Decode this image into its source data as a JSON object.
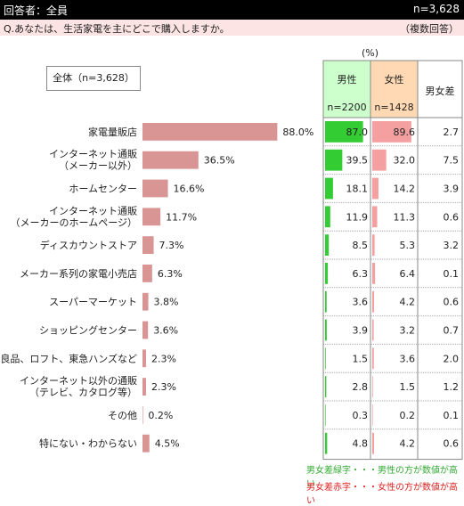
{
  "header": {
    "title": "回答者：全員",
    "n": "n=3,628"
  },
  "question": {
    "text": "Q.あなたは、生活家電を主にどこで購入しますか。",
    "note": "（複数回答）"
  },
  "unit": "(%)",
  "overall_label": "全体（n=3,628）",
  "columns": {
    "male": {
      "label": "男性",
      "n": "n=2200",
      "color": "#33cc33"
    },
    "female": {
      "label": "女性",
      "n": "n=1428",
      "color": "#f4a0a0"
    },
    "diff": {
      "label": "男女差"
    }
  },
  "colors": {
    "overall_bar": "#d99494",
    "diff_green": "#33aa33",
    "diff_red": "#dd2222",
    "male_header_bg": "#ccffcc",
    "female_header_bg": "#ffd9b3"
  },
  "legend": {
    "green": "男女差緑字・・・男性の方が数値が高い",
    "red": "男女差赤字・・・女性の方が数値が高い"
  },
  "chart_data": {
    "type": "bar",
    "title": "Q.あなたは、生活家電を主にどこで購入しますか。",
    "categories": [
      [
        "家電量販店"
      ],
      [
        "インターネット通販",
        "（メーカー以外）"
      ],
      [
        "ホームセンター"
      ],
      [
        "インターネット通販",
        "（メーカーのホームページ）"
      ],
      [
        "ディスカウントストア"
      ],
      [
        "メーカー系列の家電小売店"
      ],
      [
        "スーパーマーケット"
      ],
      [
        "ショッピングセンター"
      ],
      [
        "無印良品、ロフト、東急ハンズなど"
      ],
      [
        "インターネット以外の通販",
        "（テレビ、カタログ等）"
      ],
      [
        "その他"
      ],
      [
        "特にない・わからない"
      ]
    ],
    "series": [
      {
        "name": "全体（n=3,628）",
        "values": [
          88.0,
          36.5,
          16.6,
          11.7,
          7.3,
          6.3,
          3.8,
          3.6,
          2.3,
          2.3,
          0.2,
          4.5
        ],
        "labels": [
          "88.0%",
          "36.5%",
          "16.6%",
          "11.7%",
          "7.3%",
          "6.3%",
          "3.8%",
          "3.6%",
          "2.3%",
          "2.3%",
          "0.2%",
          "4.5%"
        ]
      },
      {
        "name": "男性",
        "values": [
          87.0,
          39.5,
          18.1,
          11.9,
          8.5,
          6.3,
          3.6,
          3.9,
          1.5,
          2.8,
          0.3,
          4.8
        ],
        "labels": [
          "87.0",
          "39.5",
          "18.1",
          "11.9",
          "8.5",
          "6.3",
          "3.6",
          "3.9",
          "1.5",
          "2.8",
          "0.3",
          "4.8"
        ]
      },
      {
        "name": "女性",
        "values": [
          89.6,
          32.0,
          14.2,
          11.3,
          5.3,
          6.4,
          4.2,
          3.2,
          3.6,
          1.5,
          0.2,
          4.2
        ],
        "labels": [
          "89.6",
          "32.0",
          "14.2",
          "11.3",
          "5.3",
          "6.4",
          "4.2",
          "3.2",
          "3.6",
          "1.5",
          "0.2",
          "4.2"
        ]
      },
      {
        "name": "男女差",
        "values": [
          2.7,
          7.5,
          3.9,
          0.6,
          3.2,
          0.1,
          0.6,
          0.7,
          2.0,
          1.2,
          0.1,
          0.6
        ],
        "labels": [
          "2.7",
          "7.5",
          "3.9",
          "0.6",
          "3.2",
          "0.1",
          "0.6",
          "0.7",
          "2.0",
          "1.2",
          "0.1",
          "0.6"
        ],
        "higher": [
          "female",
          "male",
          "male",
          "male",
          "male",
          "female",
          "female",
          "male",
          "female",
          "male",
          "male",
          "male"
        ]
      }
    ],
    "xlim": [
      0,
      100
    ]
  }
}
